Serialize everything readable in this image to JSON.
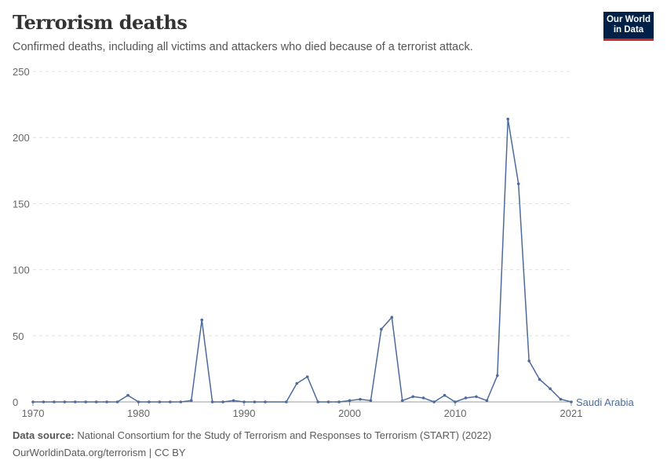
{
  "header": {
    "title": "Terrorism deaths",
    "subtitle": "Confirmed deaths, including all victims and attackers who died because of a terrorist attack.",
    "logo": {
      "line1": "Our World",
      "line2": "in Data"
    }
  },
  "chart_data": {
    "type": "line",
    "title": "Terrorism deaths",
    "ylim": [
      0,
      250
    ],
    "xlim": [
      1970,
      2021
    ],
    "yticks": [
      0,
      50,
      100,
      150,
      200,
      250
    ],
    "xticks": [
      1970,
      1980,
      1990,
      2000,
      2010,
      2021
    ],
    "grid": "horizontal dashed",
    "color": "#4c6a9c",
    "series": [
      {
        "name": "Saudi Arabia",
        "x": [
          1970,
          1971,
          1972,
          1973,
          1974,
          1975,
          1976,
          1977,
          1978,
          1979,
          1980,
          1981,
          1982,
          1983,
          1984,
          1985,
          1986,
          1987,
          1988,
          1989,
          1990,
          1991,
          1992,
          1994,
          1995,
          1996,
          1997,
          1998,
          1999,
          2000,
          2001,
          2002,
          2003,
          2004,
          2005,
          2006,
          2007,
          2008,
          2009,
          2010,
          2011,
          2012,
          2013,
          2014,
          2015,
          2016,
          2017,
          2018,
          2019,
          2020,
          2021
        ],
        "y": [
          0,
          0,
          0,
          0,
          0,
          0,
          0,
          0,
          0,
          5,
          0,
          0,
          0,
          0,
          0,
          1,
          62,
          0,
          0,
          1,
          0,
          0,
          0,
          0,
          14,
          19,
          0,
          0,
          0,
          1,
          2,
          1,
          55,
          64,
          1,
          4,
          3,
          0,
          5,
          0,
          3,
          4,
          1,
          20,
          214,
          165,
          31,
          17,
          10,
          2,
          0
        ]
      }
    ]
  },
  "footer": {
    "source_label": "Data source:",
    "source": "National Consortium for the Study of Terrorism and Responses to Terrorism (START) (2022)",
    "url": "OurWorldinData.org/terrorism | CC BY"
  }
}
